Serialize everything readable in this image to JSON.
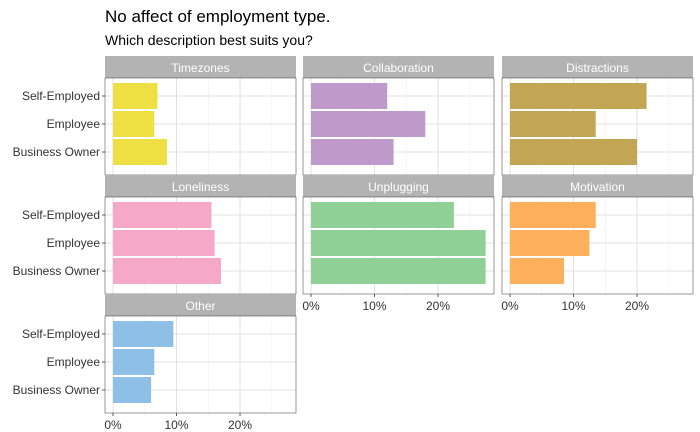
{
  "title": "No affect of employment type.",
  "subtitle": "Which description best suits you?",
  "chart_data": {
    "type": "bar",
    "orientation": "horizontal",
    "title": "No affect of employment type.",
    "subtitle": "Which description best suits you?",
    "categories": [
      "Self-Employed",
      "Employee",
      "Business Owner"
    ],
    "x_ticks": [
      "0%",
      "10%",
      "20%"
    ],
    "xlim": [
      0,
      28.5
    ],
    "grid": true,
    "panels": [
      {
        "name": "Timezones",
        "color": "#EEDF43",
        "values": [
          7.0,
          6.5,
          8.5
        ]
      },
      {
        "name": "Collaboration",
        "color": "#BF99C9",
        "values": [
          12.0,
          18.0,
          13.0
        ]
      },
      {
        "name": "Distractions",
        "color": "#C2A653",
        "values": [
          21.5,
          13.5,
          20.0
        ]
      },
      {
        "name": "Loneliness",
        "color": "#F5A8C8",
        "values": [
          15.5,
          16.0,
          17.0
        ]
      },
      {
        "name": "Unplugging",
        "color": "#90CF96",
        "values": [
          22.5,
          27.5,
          27.5
        ]
      },
      {
        "name": "Motivation",
        "color": "#FCB05C",
        "values": [
          13.5,
          12.5,
          8.5
        ]
      },
      {
        "name": "Other",
        "color": "#8EBFE6",
        "values": [
          9.5,
          6.5,
          6.0
        ]
      }
    ]
  }
}
